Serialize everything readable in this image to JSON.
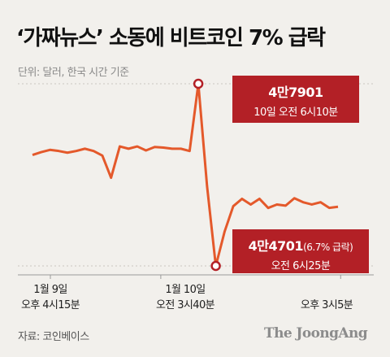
{
  "header": {
    "title": "‘가짜뉴스’ 소동에 비트코인 7% 급락",
    "unit": "단위: 달러, 한국 시간 기준"
  },
  "annotations": {
    "high": {
      "value": "4만7901",
      "time": "10일 오전 6시10분"
    },
    "low": {
      "value": "4만4701",
      "pct": "(6.7% 급락)",
      "time": "오전 6시25분"
    }
  },
  "xaxis": {
    "ticks": [
      {
        "line1": "1월 9일",
        "line2": "오후 4시15분"
      },
      {
        "line1": "1월 10일",
        "line2": "오전 3시40분"
      },
      {
        "line1": "",
        "line2": "오후 3시5분"
      }
    ]
  },
  "footer": {
    "source": "자료: 코인베이스",
    "brand": "The JoongAng"
  },
  "colors": {
    "line": "#e4592b",
    "marker": "#b32026",
    "callout_bg": "#b32026",
    "background": "#f2f0ec"
  },
  "chart_data": {
    "type": "line",
    "title": "‘가짜뉴스’ 소동에 비트코인 7% 급락",
    "ylabel": "",
    "xlabel": "",
    "unit": "달러",
    "x": [
      "1월 9일 오후 4시15분",
      "",
      "",
      "",
      "",
      "",
      "",
      "",
      "",
      "",
      "",
      "",
      "",
      "",
      "",
      "",
      "1월 10일 오전 3시40분",
      "",
      "",
      "10일 오전 6시10분",
      "",
      "오전 6시25분",
      "",
      "",
      "",
      "",
      "",
      "",
      "",
      "",
      "",
      "",
      "",
      "",
      "오후 3시5분",
      ""
    ],
    "values": [
      46650,
      46700,
      46740,
      46720,
      46690,
      46720,
      46760,
      46720,
      46640,
      46250,
      46800,
      46760,
      46800,
      46730,
      46790,
      46780,
      46760,
      46760,
      46720,
      47901,
      46100,
      44701,
      45300,
      45750,
      45880,
      45780,
      45880,
      45720,
      45780,
      45760,
      45890,
      45820,
      45780,
      45820,
      45720,
      45740
    ],
    "max_point": {
      "x": "10일 오전 6시10분",
      "value": 47901
    },
    "min_point": {
      "x": "오전 6시25분",
      "value": 44701,
      "change_pct": -6.7
    },
    "ylim": [
      44701,
      47901
    ]
  }
}
